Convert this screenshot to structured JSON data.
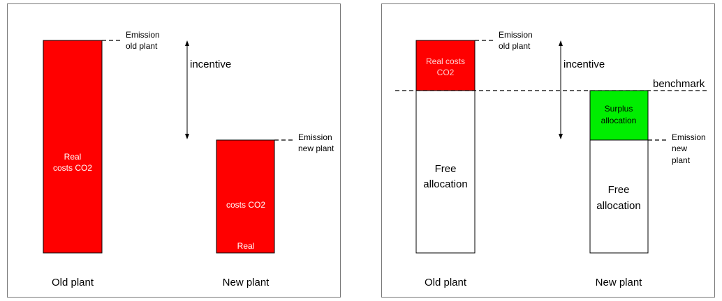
{
  "left": {
    "old_plant": {
      "label": "Old plant",
      "bar_text": [
        "Real",
        "costs CO2"
      ]
    },
    "new_plant": {
      "label": "New plant",
      "bar_text": [
        "Real",
        "costs CO2"
      ]
    },
    "emission_old": [
      "Emission",
      "old plant"
    ],
    "emission_new": [
      "Emission",
      "new plant"
    ],
    "incentive": "incentive"
  },
  "right": {
    "old_plant": {
      "label": "Old plant",
      "top_text": [
        "Real costs",
        "CO2"
      ],
      "bottom_text": [
        "Free",
        "allocation"
      ]
    },
    "new_plant": {
      "label": "New plant",
      "top_text": [
        "Surplus",
        "allocation"
      ],
      "bottom_text": [
        "Free",
        "allocation"
      ]
    },
    "emission_old": [
      "Emission",
      "old plant"
    ],
    "emission_new": [
      "Emission",
      "new",
      "plant"
    ],
    "benchmark": "benchmark",
    "incentive": "incentive"
  }
}
